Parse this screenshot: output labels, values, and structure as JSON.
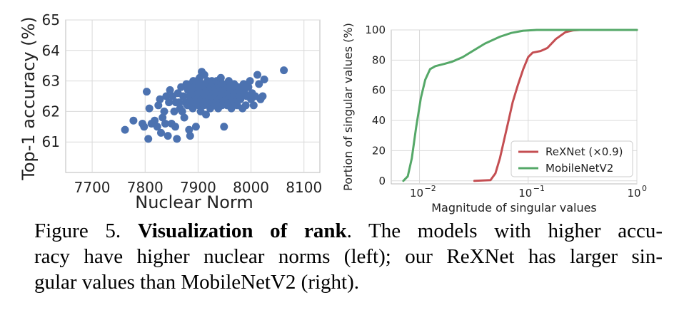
{
  "chart_data": [
    {
      "type": "scatter",
      "xlabel": "Nuclear Norm",
      "ylabel": "Top-1 accuracy (%)",
      "xlim": [
        7650,
        8130
      ],
      "ylim": [
        60.0,
        65.0
      ],
      "xticks": [
        "7700",
        "7800",
        "7900",
        "8000",
        "8100"
      ],
      "xtick_values": [
        7700,
        7800,
        7900,
        8000,
        8100
      ],
      "yticks": [
        "61",
        "62",
        "63",
        "64",
        "65"
      ],
      "ytick_values": [
        61,
        62,
        63,
        64,
        65
      ],
      "grid": true,
      "marker_color": "#4c72b0",
      "points": [
        [
          7762,
          61.4
        ],
        [
          7778,
          61.7
        ],
        [
          7795,
          61.6
        ],
        [
          7798,
          61.5
        ],
        [
          7803,
          62.65
        ],
        [
          7806,
          61.1
        ],
        [
          7808,
          62.1
        ],
        [
          7812,
          61.6
        ],
        [
          7818,
          61.7
        ],
        [
          7823,
          61.5
        ],
        [
          7825,
          62.2
        ],
        [
          7828,
          62.4
        ],
        [
          7830,
          61.3
        ],
        [
          7833,
          61.8
        ],
        [
          7836,
          62.0
        ],
        [
          7838,
          61.6
        ],
        [
          7840,
          62.5
        ],
        [
          7843,
          61.2
        ],
        [
          7845,
          62.3
        ],
        [
          7847,
          62.7
        ],
        [
          7850,
          61.6
        ],
        [
          7852,
          62.5
        ],
        [
          7855,
          62.0
        ],
        [
          7857,
          61.5
        ],
        [
          7858,
          62.3
        ],
        [
          7860,
          61.1
        ],
        [
          7862,
          62.6
        ],
        [
          7864,
          62.3
        ],
        [
          7866,
          62.1
        ],
        [
          7868,
          62.8
        ],
        [
          7870,
          62.0
        ],
        [
          7872,
          62.5
        ],
        [
          7874,
          61.8
        ],
        [
          7876,
          62.3
        ],
        [
          7878,
          62.9
        ],
        [
          7880,
          62.2
        ],
        [
          7881,
          62.7
        ],
        [
          7883,
          61.4
        ],
        [
          7884,
          62.5
        ],
        [
          7885,
          61.2
        ],
        [
          7886,
          62.9
        ],
        [
          7888,
          62.4
        ],
        [
          7889,
          62.7
        ],
        [
          7890,
          62.1
        ],
        [
          7891,
          63.0
        ],
        [
          7892,
          62.6
        ],
        [
          7893,
          62.3
        ],
        [
          7894,
          62.8
        ],
        [
          7895,
          62.5
        ],
        [
          7896,
          61.5
        ],
        [
          7897,
          62.9
        ],
        [
          7898,
          63.0
        ],
        [
          7899,
          62.4
        ],
        [
          7900,
          62.6
        ],
        [
          7901,
          62.2
        ],
        [
          7902,
          62.8
        ],
        [
          7903,
          63.1
        ],
        [
          7904,
          62.5
        ],
        [
          7905,
          62.0
        ],
        [
          7906,
          62.7
        ],
        [
          7907,
          63.3
        ],
        [
          7908,
          62.4
        ],
        [
          7909,
          62.9
        ],
        [
          7910,
          62.6
        ],
        [
          7911,
          62.2
        ],
        [
          7912,
          63.2
        ],
        [
          7913,
          62.8
        ],
        [
          7914,
          62.5
        ],
        [
          7915,
          61.9
        ],
        [
          7916,
          62.7
        ],
        [
          7917,
          62.3
        ],
        [
          7918,
          63.0
        ],
        [
          7919,
          62.6
        ],
        [
          7920,
          62.9
        ],
        [
          7921,
          62.4
        ],
        [
          7922,
          62.7
        ],
        [
          7923,
          62.1
        ],
        [
          7924,
          62.8
        ],
        [
          7925,
          62.5
        ],
        [
          7926,
          63.0
        ],
        [
          7927,
          62.3
        ],
        [
          7928,
          62.7
        ],
        [
          7929,
          62.9
        ],
        [
          7930,
          62.4
        ],
        [
          7931,
          62.6
        ],
        [
          7932,
          62.2
        ],
        [
          7933,
          62.8
        ],
        [
          7934,
          62.5
        ],
        [
          7935,
          63.0
        ],
        [
          7936,
          62.3
        ],
        [
          7937,
          62.7
        ],
        [
          7938,
          62.1
        ],
        [
          7939,
          62.9
        ],
        [
          7940,
          62.6
        ],
        [
          7941,
          62.4
        ],
        [
          7942,
          62.8
        ],
        [
          7943,
          63.1
        ],
        [
          7944,
          62.5
        ],
        [
          7945,
          62.2
        ],
        [
          7946,
          62.7
        ],
        [
          7947,
          62.9
        ],
        [
          7948,
          62.4
        ],
        [
          7949,
          61.5
        ],
        [
          7950,
          62.6
        ],
        [
          7951,
          62.3
        ],
        [
          7952,
          62.8
        ],
        [
          7953,
          62.5
        ],
        [
          7954,
          62.9
        ],
        [
          7955,
          62.2
        ],
        [
          7956,
          62.7
        ],
        [
          7957,
          62.4
        ],
        [
          7958,
          63.0
        ],
        [
          7959,
          62.6
        ],
        [
          7960,
          62.3
        ],
        [
          7961,
          62.8
        ],
        [
          7962,
          62.5
        ],
        [
          7963,
          62.1
        ],
        [
          7964,
          62.7
        ],
        [
          7966,
          62.4
        ],
        [
          7968,
          62.9
        ],
        [
          7970,
          62.3
        ],
        [
          7972,
          62.6
        ],
        [
          7974,
          62.2
        ],
        [
          7976,
          62.8
        ],
        [
          7978,
          62.5
        ],
        [
          7980,
          62.4
        ],
        [
          7982,
          62.7
        ],
        [
          7984,
          62.1
        ],
        [
          7986,
          62.9
        ],
        [
          7988,
          62.6
        ],
        [
          7990,
          62.2
        ],
        [
          7992,
          62.5
        ],
        [
          7995,
          62.8
        ],
        [
          7998,
          63.0
        ],
        [
          8000,
          62.4
        ],
        [
          8002,
          62.6
        ],
        [
          8005,
          62.2
        ],
        [
          8008,
          62.5
        ],
        [
          8012,
          63.2
        ],
        [
          8015,
          62.9
        ],
        [
          8018,
          62.4
        ],
        [
          8022,
          62.5
        ],
        [
          8025,
          63.05
        ],
        [
          8062,
          63.35
        ]
      ]
    },
    {
      "type": "line",
      "xlabel": "Magnitude of singular values",
      "ylabel": "Portion of singular values (%)",
      "xscale": "log",
      "xlim": [
        0.0055,
        1.0
      ],
      "ylim": [
        -2,
        100
      ],
      "xticks": [
        "10",
        "10",
        "10"
      ],
      "xtick_exponents": [
        "−2",
        "−1",
        "0"
      ],
      "xtick_values": [
        0.01,
        0.1,
        1.0
      ],
      "yticks": [
        "0",
        "20",
        "40",
        "60",
        "80",
        "100"
      ],
      "ytick_values": [
        0,
        20,
        40,
        60,
        80,
        100
      ],
      "grid": true,
      "legend_position": "lower-right",
      "series": [
        {
          "name": "ReXNet (×0.9)",
          "color": "#c44e52",
          "points": [
            [
              0.032,
              0
            ],
            [
              0.045,
              0.5
            ],
            [
              0.05,
              5
            ],
            [
              0.055,
              15
            ],
            [
              0.06,
              27
            ],
            [
              0.066,
              40
            ],
            [
              0.072,
              52
            ],
            [
              0.08,
              63
            ],
            [
              0.09,
              74
            ],
            [
              0.1,
              82
            ],
            [
              0.11,
              85
            ],
            [
              0.13,
              86
            ],
            [
              0.15,
              88
            ],
            [
              0.18,
              94
            ],
            [
              0.22,
              98.5
            ],
            [
              0.26,
              99.7
            ],
            [
              0.3,
              100
            ],
            [
              1.0,
              100
            ]
          ]
        },
        {
          "name": "MobileNetV2",
          "color": "#55a868",
          "points": [
            [
              0.0071,
              0
            ],
            [
              0.0078,
              3
            ],
            [
              0.0085,
              15
            ],
            [
              0.0093,
              35
            ],
            [
              0.0103,
              55
            ],
            [
              0.0113,
              67
            ],
            [
              0.0125,
              74
            ],
            [
              0.014,
              76
            ],
            [
              0.017,
              77.5
            ],
            [
              0.02,
              79
            ],
            [
              0.025,
              82
            ],
            [
              0.03,
              85.5
            ],
            [
              0.04,
              91
            ],
            [
              0.055,
              95.5
            ],
            [
              0.07,
              98
            ],
            [
              0.09,
              99.5
            ],
            [
              0.12,
              100
            ],
            [
              1.0,
              100
            ]
          ]
        }
      ]
    }
  ],
  "caption": {
    "label": "Figure 5.",
    "bold": "Visualization of rank",
    "line1_rest": ". The models with higher accu-",
    "line2": "racy have higher nuclear norms (left); our ReXNet has larger sin-",
    "line3": "gular values than MobileNetV2 (right)."
  }
}
